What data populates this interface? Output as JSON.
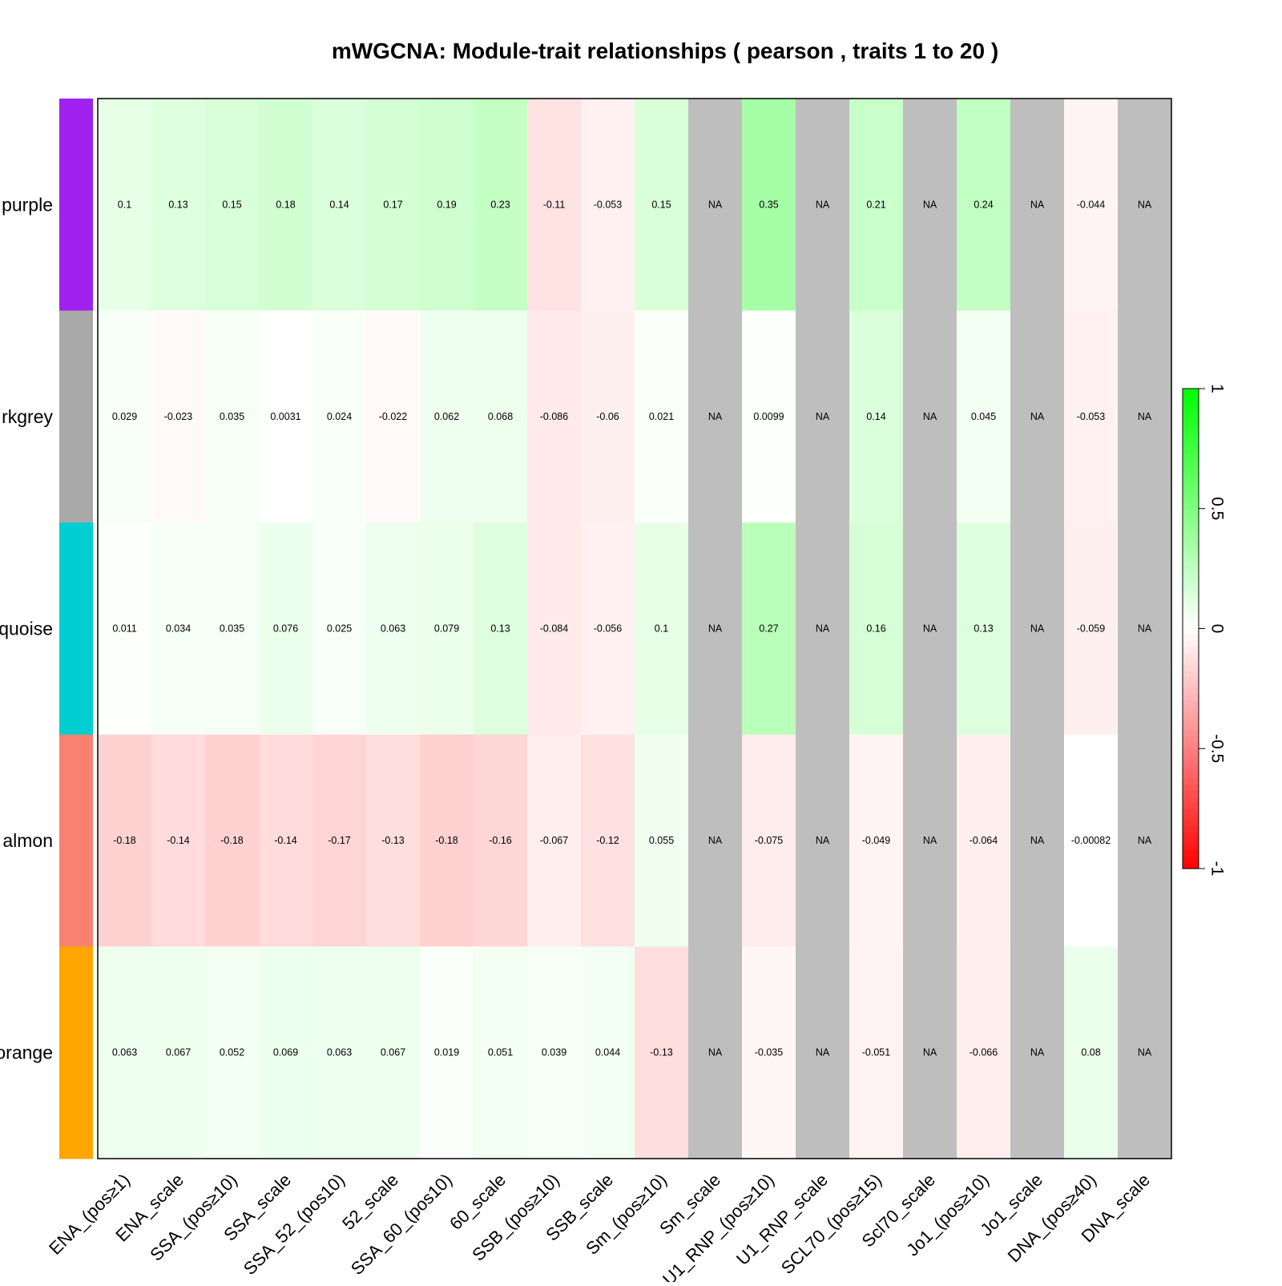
{
  "chart_data": {
    "type": "heatmap",
    "title": "mWGCNA: Module-trait relationships ( pearson , traits  1  to  20 )",
    "rows": [
      {
        "label": "purple",
        "color": "#A020F0"
      },
      {
        "label": "rkgrey",
        "color": "#A9A9A9"
      },
      {
        "label": "quoise",
        "color": "#00CED1"
      },
      {
        "label": "almon",
        "color": "#FA8072"
      },
      {
        "label": "orange",
        "color": "#FFA500"
      }
    ],
    "columns": [
      "ENA_(pos≥1)",
      "ENA_scale",
      "SSA_(pos≥10)",
      "SSA_scale",
      "SSA_52_(pos10)",
      "52_scale",
      "SSA_60_(pos10)",
      "60_scale",
      "SSB_(pos≥10)",
      "SSB_scale",
      "Sm_(pos≥10)",
      "Sm_scale",
      "U1_RNP_(pos≥10)",
      "U1_RNP_scale",
      "SCL70_(pos≥15)",
      "Scl70_scale",
      "Jo1_(pos≥10)",
      "Jo1_scale",
      "DNA_(pos≥40)",
      "DNA_scale"
    ],
    "values": [
      [
        0.1,
        0.13,
        0.15,
        0.18,
        0.14,
        0.17,
        0.19,
        0.23,
        -0.11,
        -0.053,
        0.15,
        null,
        0.35,
        null,
        0.21,
        null,
        0.24,
        null,
        -0.044,
        null
      ],
      [
        0.029,
        -0.023,
        0.035,
        0.0031,
        0.024,
        -0.022,
        0.062,
        0.068,
        -0.086,
        -0.06,
        0.021,
        null,
        0.0099,
        null,
        0.14,
        null,
        0.045,
        null,
        -0.053,
        null
      ],
      [
        0.011,
        0.034,
        0.035,
        0.076,
        0.025,
        0.063,
        0.079,
        0.13,
        -0.084,
        -0.056,
        0.1,
        null,
        0.27,
        null,
        0.16,
        null,
        0.13,
        null,
        -0.059,
        null
      ],
      [
        -0.18,
        -0.14,
        -0.18,
        -0.14,
        -0.17,
        -0.13,
        -0.18,
        -0.16,
        -0.067,
        -0.12,
        0.055,
        null,
        -0.075,
        null,
        -0.049,
        null,
        -0.064,
        null,
        -0.00082,
        null
      ],
      [
        0.063,
        0.067,
        0.052,
        0.069,
        0.063,
        0.067,
        0.019,
        0.051,
        0.039,
        0.044,
        -0.13,
        null,
        -0.035,
        null,
        -0.051,
        null,
        -0.066,
        null,
        0.08,
        null
      ]
    ],
    "cell_labels": [
      [
        "0.1",
        "0.13",
        "0.15",
        "0.18",
        "0.14",
        "0.17",
        "0.19",
        "0.23",
        "-0.11",
        "-0.053",
        "0.15",
        "NA",
        "0.35",
        "NA",
        "0.21",
        "NA",
        "0.24",
        "NA",
        "-0.044",
        "NA"
      ],
      [
        "0.029",
        "-0.023",
        "0.035",
        "0.0031",
        "0.024",
        "-0.022",
        "0.062",
        "0.068",
        "-0.086",
        "-0.06",
        "0.021",
        "NA",
        "0.0099",
        "NA",
        "0.14",
        "NA",
        "0.045",
        "NA",
        "-0.053",
        "NA"
      ],
      [
        "0.011",
        "0.034",
        "0.035",
        "0.076",
        "0.025",
        "0.063",
        "0.079",
        "0.13",
        "-0.084",
        "-0.056",
        "0.1",
        "NA",
        "0.27",
        "NA",
        "0.16",
        "NA",
        "0.13",
        "NA",
        "-0.059",
        "NA"
      ],
      [
        "-0.18",
        "-0.14",
        "-0.18",
        "-0.14",
        "-0.17",
        "-0.13",
        "-0.18",
        "-0.16",
        "-0.067",
        "-0.12",
        "0.055",
        "NA",
        "-0.075",
        "NA",
        "-0.049",
        "NA",
        "-0.064",
        "NA",
        "-0.00082",
        "NA"
      ],
      [
        "0.063",
        "0.067",
        "0.052",
        "0.069",
        "0.063",
        "0.067",
        "0.019",
        "0.051",
        "0.039",
        "0.044",
        "-0.13",
        "NA",
        "-0.035",
        "NA",
        "-0.051",
        "NA",
        "-0.066",
        "NA",
        "0.08",
        "NA"
      ]
    ],
    "color_scale": {
      "range": [
        -1,
        1
      ],
      "low_color": "#FF0000",
      "mid_color": "#FFFFFF",
      "high_color": "#00FF00",
      "na_color": "#BEBEBE",
      "ticks": [
        {
          "value": -1,
          "label": "-1"
        },
        {
          "value": -0.5,
          "label": "-0.5"
        },
        {
          "value": 0,
          "label": "0"
        },
        {
          "value": 0.5,
          "label": "0.5"
        },
        {
          "value": 1,
          "label": "1"
        }
      ]
    },
    "legend_position": "right",
    "grid": false
  }
}
